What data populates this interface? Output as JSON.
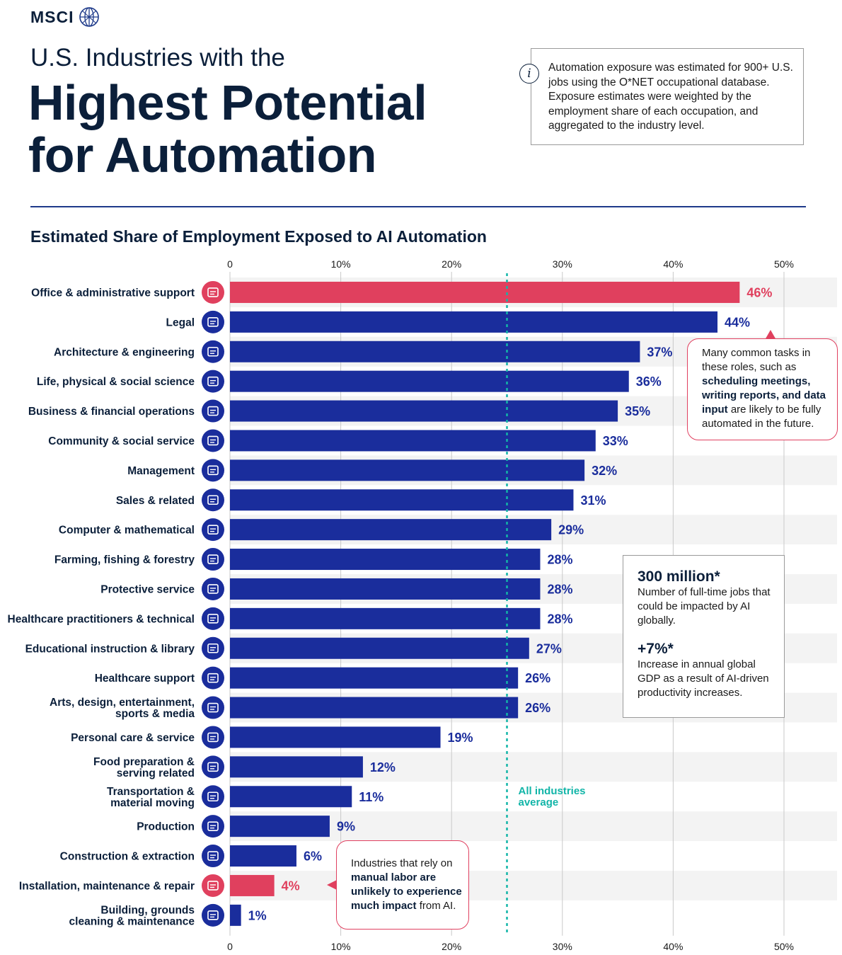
{
  "brand": {
    "name": "MSCI",
    "logo_icon": "globe-icon"
  },
  "header": {
    "title_line1": "U.S. Industries with the",
    "title_line2": "Highest Potential",
    "title_line3": "for Automation"
  },
  "info": {
    "icon": "info-icon",
    "icon_glyph": "i",
    "text": "Automation exposure was estimated for 900+ U.S. jobs using the O*NET occupational database. Exposure estimates were weighted by the employment share of each occupation, and aggregated to the industry level."
  },
  "chart_data": {
    "type": "bar",
    "orientation": "horizontal",
    "title": "Estimated Share of Employment Exposed to AI Automation",
    "xlim": [
      0,
      50
    ],
    "ticks": [
      "0",
      "10%",
      "20%",
      "30%",
      "40%",
      "50%"
    ],
    "tick_values": [
      0,
      10,
      20,
      30,
      40,
      50
    ],
    "grid": true,
    "colors": {
      "default": "#1a2d9c",
      "highlight": "#e0405e",
      "average": "#12b5a8"
    },
    "average": {
      "value": 25,
      "label_line1": "All industries",
      "label_line2": "average"
    },
    "categories": [
      {
        "line1": "Office & administrative support",
        "line2": "",
        "value": 46,
        "label": "46%",
        "highlight": true,
        "icon": "office-building-icon"
      },
      {
        "line1": "Legal",
        "line2": "",
        "value": 44,
        "label": "44%",
        "highlight": false,
        "icon": "gavel-icon"
      },
      {
        "line1": "Architecture & engineering",
        "line2": "",
        "value": 37,
        "label": "37%",
        "highlight": false,
        "icon": "factory-icon"
      },
      {
        "line1": "Life, physical & social science",
        "line2": "",
        "value": 36,
        "label": "36%",
        "highlight": false,
        "icon": "people-group-icon"
      },
      {
        "line1": "Business & financial operations",
        "line2": "",
        "value": 35,
        "label": "35%",
        "highlight": false,
        "icon": "handshake-icon"
      },
      {
        "line1": "Community & social service",
        "line2": "",
        "value": 33,
        "label": "33%",
        "highlight": false,
        "icon": "social-worker-icon"
      },
      {
        "line1": "Management",
        "line2": "",
        "value": 32,
        "label": "32%",
        "highlight": false,
        "icon": "document-icon"
      },
      {
        "line1": "Sales & related",
        "line2": "",
        "value": 31,
        "label": "31%",
        "highlight": false,
        "icon": "sales-chart-icon"
      },
      {
        "line1": "Computer & mathematical",
        "line2": "",
        "value": 29,
        "label": "29%",
        "highlight": false,
        "icon": "computer-gear-icon"
      },
      {
        "line1": "Farming, fishing & forestry",
        "line2": "",
        "value": 28,
        "label": "28%",
        "highlight": false,
        "icon": "trees-icon"
      },
      {
        "line1": "Protective service",
        "line2": "",
        "value": 28,
        "label": "28%",
        "highlight": false,
        "icon": "padlock-icon"
      },
      {
        "line1": "Healthcare practitioners & technical",
        "line2": "",
        "value": 28,
        "label": "28%",
        "highlight": false,
        "icon": "stethoscope-icon"
      },
      {
        "line1": "Educational instruction & library",
        "line2": "",
        "value": 27,
        "label": "27%",
        "highlight": false,
        "icon": "graduation-cap-icon"
      },
      {
        "line1": "Healthcare support",
        "line2": "",
        "value": 26,
        "label": "26%",
        "highlight": false,
        "icon": "heart-pulse-icon"
      },
      {
        "line1": "Arts, design, entertainment,",
        "line2": "sports & media",
        "value": 26,
        "label": "26%",
        "highlight": false,
        "icon": "gamepad-icon"
      },
      {
        "line1": "Personal care & service",
        "line2": "",
        "value": 19,
        "label": "19%",
        "highlight": false,
        "icon": "shopping-cart-icon"
      },
      {
        "line1": "Food preparation &",
        "line2": "serving related",
        "value": 12,
        "label": "12%",
        "highlight": false,
        "icon": "burger-icon"
      },
      {
        "line1": "Transportation &",
        "line2": "material moving",
        "value": 11,
        "label": "11%",
        "highlight": false,
        "icon": "car-icon"
      },
      {
        "line1": "Production",
        "line2": "",
        "value": 9,
        "label": "9%",
        "highlight": false,
        "icon": "warehouse-icon"
      },
      {
        "line1": "Construction & extraction",
        "line2": "",
        "value": 6,
        "label": "6%",
        "highlight": false,
        "icon": "worker-icon"
      },
      {
        "line1": "Installation, maintenance & repair",
        "line2": "",
        "value": 4,
        "label": "4%",
        "highlight": true,
        "icon": "robot-arm-icon"
      },
      {
        "line1": "Building, grounds",
        "line2": "cleaning & maintenance",
        "value": 1,
        "label": "1%",
        "highlight": false,
        "icon": "buildings-icon"
      }
    ]
  },
  "callouts": {
    "top": {
      "pre": "Many common tasks in these roles, such as ",
      "bold": "scheduling meetings, writing reports, and data input",
      "post": " are likely to be fully automated in the future."
    },
    "bottom": {
      "pre": "Industries that rely on ",
      "bold": "manual labor are unlikely to experience much impact",
      "post": " from AI."
    }
  },
  "stats": [
    {
      "value": "300 million*",
      "desc": "Number of full-time jobs that could be impacted by AI globally."
    },
    {
      "value": "+7%*",
      "desc": "Increase in annual global GDP as a result of AI-driven productivity increases."
    }
  ]
}
